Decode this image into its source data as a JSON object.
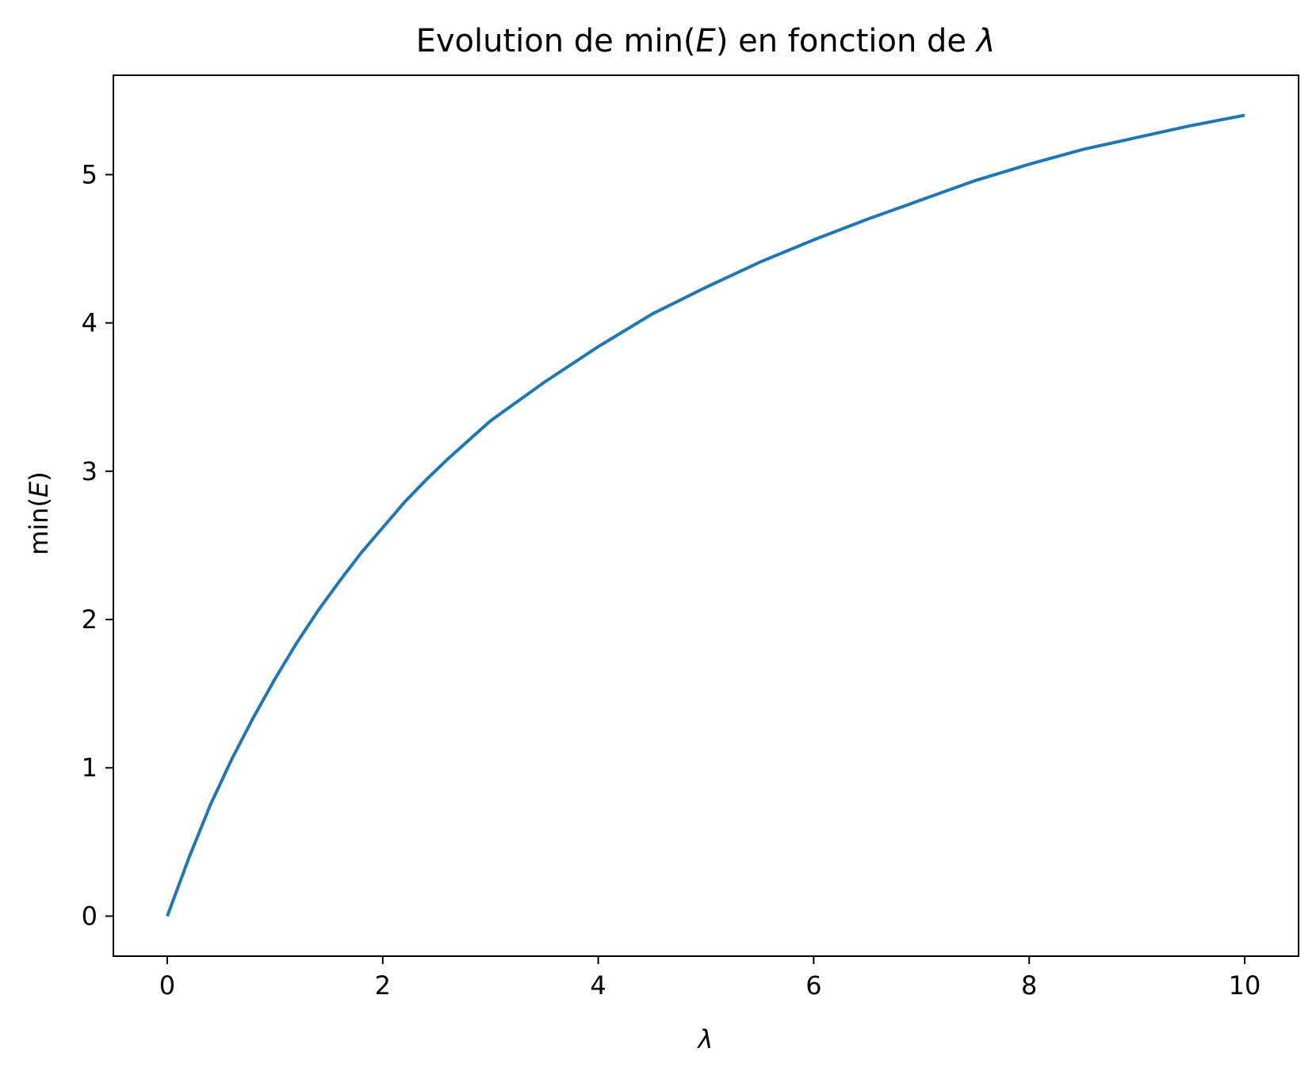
{
  "chart_data": {
    "type": "line",
    "title_prefix": "Evolution de min(",
    "title_var": "E",
    "title_mid": ") en fonction de ",
    "title_lambda": "λ",
    "xlabel": "λ",
    "ylabel_prefix": "min(",
    "ylabel_var": "E",
    "ylabel_suffix": ")",
    "xlim": [
      -0.5,
      10.5
    ],
    "ylim": [
      -0.27,
      5.67
    ],
    "xticks": [
      0,
      2,
      4,
      6,
      8,
      10
    ],
    "yticks": [
      0,
      1,
      2,
      3,
      4,
      5
    ],
    "grid": false,
    "line_color": "#1f77b4",
    "series": [
      {
        "x": [
          0,
          0.2,
          0.4,
          0.6,
          0.8,
          1.0,
          1.2,
          1.4,
          1.6,
          1.8,
          2.0,
          2.2,
          2.4,
          2.6,
          2.8,
          3.0,
          3.5,
          4.0,
          4.5,
          5.0,
          5.5,
          6.0,
          6.5,
          7.0,
          7.5,
          8.0,
          8.5,
          9.0,
          9.5,
          10.0
        ],
        "y": [
          0,
          0.39,
          0.75,
          1.06,
          1.34,
          1.6,
          1.84,
          2.06,
          2.26,
          2.45,
          2.62,
          2.79,
          2.94,
          3.08,
          3.21,
          3.34,
          3.6,
          3.84,
          4.06,
          4.24,
          4.41,
          4.56,
          4.7,
          4.83,
          4.96,
          5.07,
          5.17,
          5.25,
          5.33,
          5.4
        ]
      }
    ]
  }
}
